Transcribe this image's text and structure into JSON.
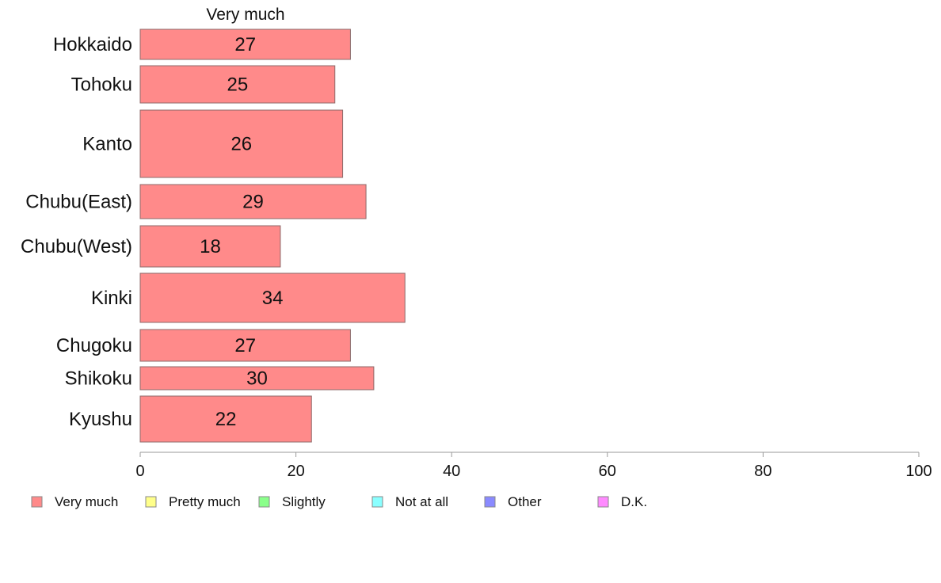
{
  "chart_data": {
    "type": "bar",
    "orientation": "horizontal",
    "title": "Very much",
    "xlabel": "",
    "ylabel": "",
    "xlim": [
      0,
      100
    ],
    "xticks": [
      0,
      20,
      40,
      60,
      80,
      100
    ],
    "grid": false,
    "legend_position": "bottom",
    "categories": [
      "Hokkaido",
      "Tohoku",
      "Kanto",
      "Chubu(East)",
      "Chubu(West)",
      "Kinki",
      "Chugoku",
      "Shikoku",
      "Kyushu"
    ],
    "values": [
      27,
      25,
      26,
      29,
      18,
      34,
      27,
      30,
      22
    ],
    "value_labels": [
      "27",
      "25",
      "26",
      "29",
      "18",
      "34",
      "27",
      "30",
      "22"
    ],
    "bar_color": "#ff8a8a",
    "legend": [
      {
        "name": "Very much",
        "color": "#ff8a8a"
      },
      {
        "name": "Pretty much",
        "color": "#ffff8a"
      },
      {
        "name": "Slightly",
        "color": "#8aff8a"
      },
      {
        "name": "Not at all",
        "color": "#8affff"
      },
      {
        "name": "Other",
        "color": "#8a8aff"
      },
      {
        "name": "D.K.",
        "color": "#ff8aff"
      }
    ]
  }
}
